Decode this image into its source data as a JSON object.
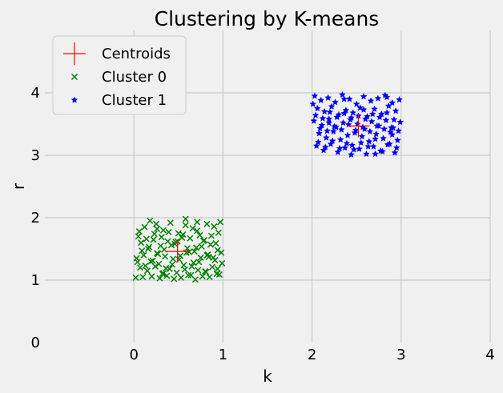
{
  "chart_data": {
    "type": "scatter",
    "title": "Clustering by K-means",
    "xlabel": "k",
    "ylabel": "r",
    "xlim": [
      -1,
      4
    ],
    "ylim": [
      0,
      5
    ],
    "xticks": [
      "0",
      "1",
      "2",
      "3",
      "4"
    ],
    "yticks": [
      "0",
      "1",
      "2",
      "3",
      "4"
    ],
    "grid": true,
    "legend_position": "top-left",
    "background": "#f0f0f0",
    "grid_color": "#cbcbcb",
    "series": [
      {
        "name": "Centroids",
        "marker": "plus",
        "color": "#ff0000",
        "x": [
          0.49,
          2.52
        ],
        "y": [
          1.46,
          3.47
        ]
      },
      {
        "name": "Cluster 0",
        "marker": "x",
        "color": "#008000",
        "x": [
          0.05,
          0.12,
          0.18,
          0.25,
          0.33,
          0.41,
          0.5,
          0.58,
          0.66,
          0.74,
          0.82,
          0.9,
          0.97,
          0.08,
          0.16,
          0.22,
          0.3,
          0.38,
          0.46,
          0.54,
          0.62,
          0.7,
          0.78,
          0.86,
          0.94,
          0.03,
          0.11,
          0.19,
          0.27,
          0.35,
          0.43,
          0.51,
          0.59,
          0.67,
          0.75,
          0.83,
          0.91,
          0.99,
          0.07,
          0.15,
          0.24,
          0.32,
          0.4,
          0.48,
          0.56,
          0.64,
          0.72,
          0.8,
          0.88,
          0.96,
          0.1,
          0.2,
          0.29,
          0.37,
          0.45,
          0.53,
          0.61,
          0.69,
          0.77,
          0.85,
          0.93,
          0.06,
          0.14,
          0.23,
          0.31,
          0.39,
          0.47,
          0.55,
          0.63,
          0.71,
          0.79,
          0.87,
          0.95,
          0.09,
          0.17,
          0.26,
          0.34,
          0.42,
          0.52,
          0.6,
          0.68,
          0.76,
          0.84,
          0.92,
          0.98,
          0.04,
          0.13,
          0.21,
          0.28,
          0.36,
          0.44,
          0.57,
          0.65,
          0.73,
          0.81,
          0.89,
          0.02,
          0.26,
          0.49,
          0.71,
          0.94,
          0.33,
          0.58,
          0.82
        ],
        "y": [
          1.7,
          1.85,
          1.95,
          1.9,
          1.8,
          1.92,
          1.75,
          1.88,
          1.83,
          1.72,
          1.9,
          1.86,
          1.93,
          1.6,
          1.5,
          1.65,
          1.55,
          1.62,
          1.58,
          1.68,
          1.45,
          1.52,
          1.63,
          1.57,
          1.48,
          1.35,
          1.4,
          1.3,
          1.42,
          1.38,
          1.25,
          1.33,
          1.44,
          1.28,
          1.36,
          1.41,
          1.32,
          1.27,
          1.2,
          1.15,
          1.22,
          1.1,
          1.18,
          1.12,
          1.24,
          1.08,
          1.16,
          1.14,
          1.21,
          1.09,
          1.05,
          1.06,
          1.03,
          1.07,
          1.02,
          1.04,
          1.08,
          1.01,
          1.06,
          1.05,
          1.1,
          1.78,
          1.66,
          1.74,
          1.69,
          1.77,
          1.61,
          1.73,
          1.67,
          1.79,
          1.64,
          1.71,
          1.76,
          1.47,
          1.53,
          1.43,
          1.49,
          1.56,
          1.39,
          1.51,
          1.46,
          1.54,
          1.37,
          1.59,
          1.44,
          1.29,
          1.23,
          1.31,
          1.26,
          1.19,
          1.34,
          1.17,
          1.22,
          1.29,
          1.13,
          1.36,
          1.04,
          1.82,
          1.62,
          1.93,
          1.18,
          1.11,
          1.98,
          1.4
        ]
      },
      {
        "name": "Cluster 1",
        "marker": "star",
        "color": "#0000ff",
        "x": [
          2.03,
          2.1,
          2.18,
          2.26,
          2.34,
          2.42,
          2.5,
          2.58,
          2.66,
          2.74,
          2.82,
          2.9,
          2.98,
          2.06,
          2.14,
          2.22,
          2.3,
          2.38,
          2.46,
          2.54,
          2.62,
          2.7,
          2.78,
          2.86,
          2.94,
          2.02,
          2.11,
          2.19,
          2.27,
          2.35,
          2.43,
          2.51,
          2.59,
          2.67,
          2.75,
          2.83,
          2.91,
          2.99,
          2.08,
          2.16,
          2.24,
          2.32,
          2.4,
          2.48,
          2.56,
          2.64,
          2.72,
          2.8,
          2.88,
          2.96,
          2.05,
          2.13,
          2.21,
          2.29,
          2.37,
          2.45,
          2.53,
          2.61,
          2.69,
          2.77,
          2.85,
          2.93,
          2.04,
          2.12,
          2.2,
          2.28,
          2.36,
          2.44,
          2.52,
          2.6,
          2.68,
          2.76,
          2.84,
          2.92,
          2.09,
          2.17,
          2.25,
          2.33,
          2.41,
          2.49,
          2.57,
          2.65,
          2.73,
          2.81,
          2.89,
          2.97,
          2.07,
          2.15,
          2.23,
          2.31,
          2.39,
          2.47,
          2.55,
          2.63,
          2.71,
          2.79,
          2.87,
          2.95,
          2.01,
          2.44,
          2.71,
          2.36,
          2.9,
          2.58,
          2.19,
          2.84
        ],
        "y": [
          3.95,
          3.88,
          3.92,
          3.85,
          3.97,
          3.9,
          3.82,
          3.94,
          3.87,
          3.91,
          3.96,
          3.84,
          3.89,
          3.75,
          3.7,
          3.78,
          3.65,
          3.72,
          3.68,
          3.76,
          3.62,
          3.74,
          3.66,
          3.79,
          3.71,
          3.55,
          3.48,
          3.58,
          3.45,
          3.52,
          3.57,
          3.5,
          3.42,
          3.54,
          3.47,
          3.56,
          3.44,
          3.53,
          3.35,
          3.28,
          3.38,
          3.25,
          3.32,
          3.36,
          3.3,
          3.22,
          3.34,
          3.27,
          3.37,
          3.24,
          3.15,
          3.08,
          3.18,
          3.05,
          3.12,
          3.16,
          3.1,
          3.02,
          3.14,
          3.07,
          3.17,
          3.04,
          3.64,
          3.59,
          3.69,
          3.61,
          3.67,
          3.6,
          3.63,
          3.58,
          3.66,
          3.61,
          3.68,
          3.57,
          3.43,
          3.39,
          3.46,
          3.41,
          3.49,
          3.4,
          3.45,
          3.38,
          3.47,
          3.42,
          3.44,
          3.39,
          3.21,
          3.13,
          3.23,
          3.11,
          3.19,
          3.09,
          3.2,
          3.14,
          3.26,
          3.06,
          3.18,
          3.12,
          3.82,
          3.01,
          3.02,
          3.9,
          3.33,
          3.73,
          3.52,
          3.93
        ]
      }
    ]
  }
}
